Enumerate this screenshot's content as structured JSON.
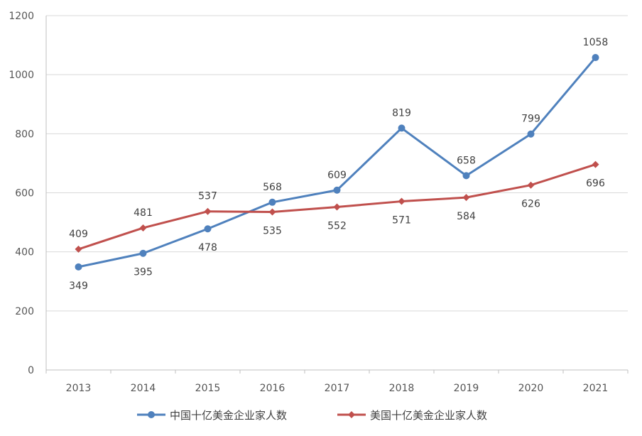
{
  "chart_data": {
    "type": "line",
    "categories": [
      "2013",
      "2014",
      "2015",
      "2016",
      "2017",
      "2018",
      "2019",
      "2020",
      "2021"
    ],
    "series": [
      {
        "name": "中国十亿美金企业家人数",
        "values": [
          349,
          395,
          478,
          568,
          609,
          819,
          658,
          799,
          1058
        ],
        "color": "#4f81bd",
        "marker": "circle",
        "label_positions": [
          "below",
          "below",
          "below",
          "above",
          "above",
          "above",
          "above",
          "above",
          "above"
        ]
      },
      {
        "name": "美国十亿美金企业家人数",
        "values": [
          409,
          481,
          537,
          535,
          552,
          571,
          584,
          626,
          696
        ],
        "color": "#c0504d",
        "marker": "diamond",
        "label_positions": [
          "above",
          "above",
          "above",
          "below",
          "below",
          "below",
          "below",
          "below",
          "below"
        ]
      }
    ],
    "ylim": [
      0,
      1200
    ],
    "yticks": [
      0,
      200,
      400,
      600,
      800,
      1000,
      1200
    ],
    "grid": true,
    "legend": "bottom",
    "title": "",
    "xlabel": "",
    "ylabel": ""
  }
}
